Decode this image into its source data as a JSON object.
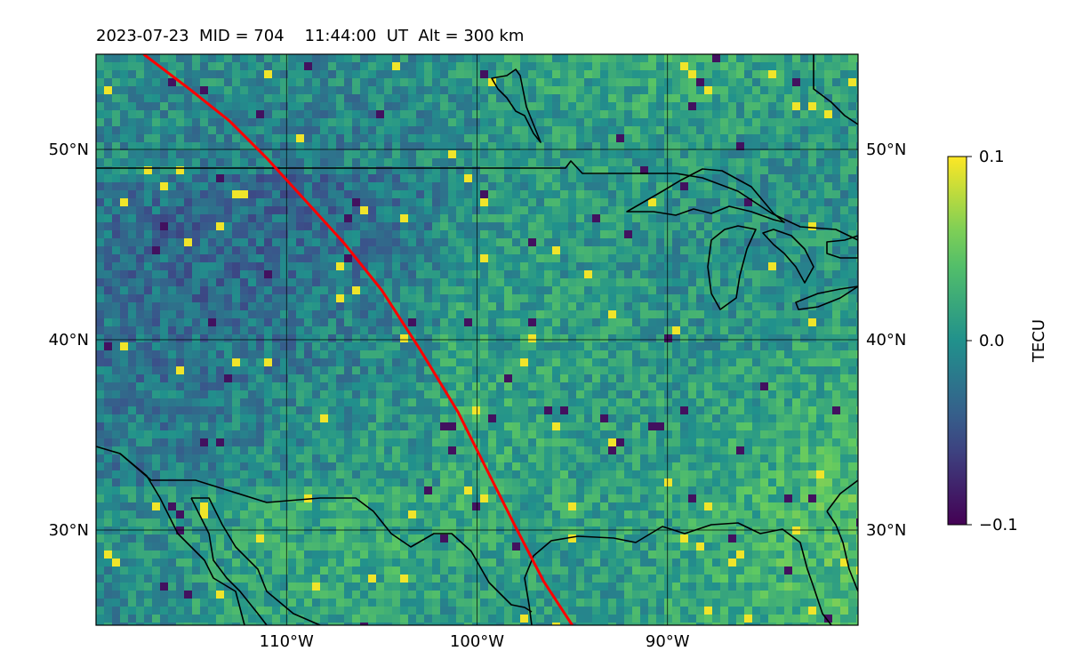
{
  "title": "2023-07-23  MID = 704    11:44:00  UT  Alt = 300 km",
  "map": {
    "lon_range": [
      -120,
      -80
    ],
    "lat_range": [
      25,
      55
    ],
    "lon_ticks": [
      {
        "value": -110,
        "label": "110°W"
      },
      {
        "value": -100,
        "label": "100°W"
      },
      {
        "value": -90,
        "label": "90°W"
      }
    ],
    "lat_ticks": [
      {
        "value": 50,
        "label": "50°N"
      },
      {
        "value": 40,
        "label": "40°N"
      },
      {
        "value": 30,
        "label": "30°N"
      }
    ],
    "gridlines": true,
    "colormap": [
      "#440154",
      "#3b528b",
      "#21918c",
      "#5ec962",
      "#fde725"
    ],
    "track_color": "#ff0000",
    "track": [
      [
        -117.5,
        55
      ],
      [
        -115,
        53.1
      ],
      [
        -113,
        51.5
      ],
      [
        -111,
        49.5
      ],
      [
        -109,
        47.3
      ],
      [
        -107,
        45.1
      ],
      [
        -105,
        42.6
      ],
      [
        -103,
        39.5
      ],
      [
        -101,
        36.2
      ],
      [
        -99.5,
        33.2
      ],
      [
        -98,
        30.2
      ],
      [
        -96.5,
        27.3
      ],
      [
        -95,
        25
      ]
    ]
  },
  "colorbar": {
    "label": "TECU",
    "min": -0.1,
    "max": 0.1,
    "ticks": [
      {
        "value": 0.1,
        "label": "0.1"
      },
      {
        "value": 0.0,
        "label": "0.0"
      },
      {
        "value": -0.1,
        "label": "−0.1"
      }
    ]
  }
}
